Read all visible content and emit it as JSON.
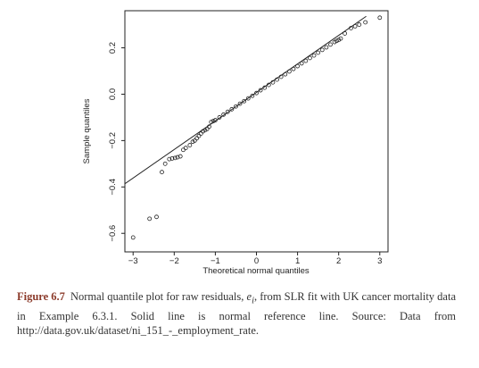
{
  "chart_data": {
    "type": "scatter",
    "x_label": "Theoretical normal quantiles",
    "y_label": "Sample quantiles",
    "xlim": [
      -3.2,
      3.2
    ],
    "ylim": [
      -0.68,
      0.36
    ],
    "xticks": [
      {
        "value": -3,
        "label": "−3"
      },
      {
        "value": -2,
        "label": "−2"
      },
      {
        "value": -1,
        "label": "−1"
      },
      0,
      1,
      2,
      3
    ],
    "yticks": [
      {
        "value": -0.6,
        "label": "−0.6"
      },
      {
        "value": -0.4,
        "label": "−0.4"
      },
      {
        "value": -0.2,
        "label": "−0.2"
      },
      {
        "value": 0,
        "label": "0.0"
      },
      0.2
    ],
    "color": "#222222",
    "x": [
      -3.0,
      -2.6,
      -2.43,
      -2.3,
      -2.22,
      -2.12,
      -2.05,
      -1.98,
      -1.92,
      -1.85,
      -1.78,
      -1.72,
      -1.62,
      -1.55,
      -1.5,
      -1.45,
      -1.4,
      -1.35,
      -1.3,
      -1.25,
      -1.2,
      -1.15,
      -1.1,
      -1.05,
      -1.0,
      -0.9,
      -0.8,
      -0.7,
      -0.6,
      -0.5,
      -0.4,
      -0.3,
      -0.2,
      -0.1,
      0,
      0.1,
      0.2,
      0.3,
      0.4,
      0.5,
      0.6,
      0.7,
      0.8,
      0.9,
      1.0,
      1.1,
      1.2,
      1.3,
      1.4,
      1.5,
      1.6,
      1.7,
      1.8,
      1.9,
      1.95,
      2.0,
      2.05,
      2.15,
      2.3,
      2.4,
      2.5,
      2.65,
      3.0
    ],
    "values": [
      -0.618,
      -0.537,
      -0.529,
      -0.336,
      -0.3,
      -0.28,
      -0.277,
      -0.275,
      -0.272,
      -0.268,
      -0.24,
      -0.232,
      -0.22,
      -0.205,
      -0.2,
      -0.19,
      -0.18,
      -0.17,
      -0.16,
      -0.155,
      -0.15,
      -0.14,
      -0.12,
      -0.116,
      -0.112,
      -0.1,
      -0.088,
      -0.076,
      -0.065,
      -0.053,
      -0.041,
      -0.03,
      -0.018,
      -0.007,
      0.005,
      0.017,
      0.028,
      0.04,
      0.051,
      0.063,
      0.075,
      0.086,
      0.098,
      0.109,
      0.121,
      0.133,
      0.144,
      0.156,
      0.167,
      0.179,
      0.191,
      0.202,
      0.214,
      0.225,
      0.23,
      0.234,
      0.24,
      0.262,
      0.285,
      0.293,
      0.3,
      0.31,
      0.33
    ],
    "reference_line": {
      "x": [
        -3.2,
        2.67
      ],
      "y": [
        -0.386,
        0.336
      ]
    }
  },
  "caption": {
    "label": "Figure 6.7",
    "text_before": "Normal quantile plot for raw residuals, ",
    "symbol": "e",
    "subscript": "i",
    "text_after": ", from SLR fit with UK cancer mortality data in Example 6.3.1. Solid line is normal reference line. Source: Data from http://data.gov.uk/dataset/ni_151_-_employment_rate."
  }
}
